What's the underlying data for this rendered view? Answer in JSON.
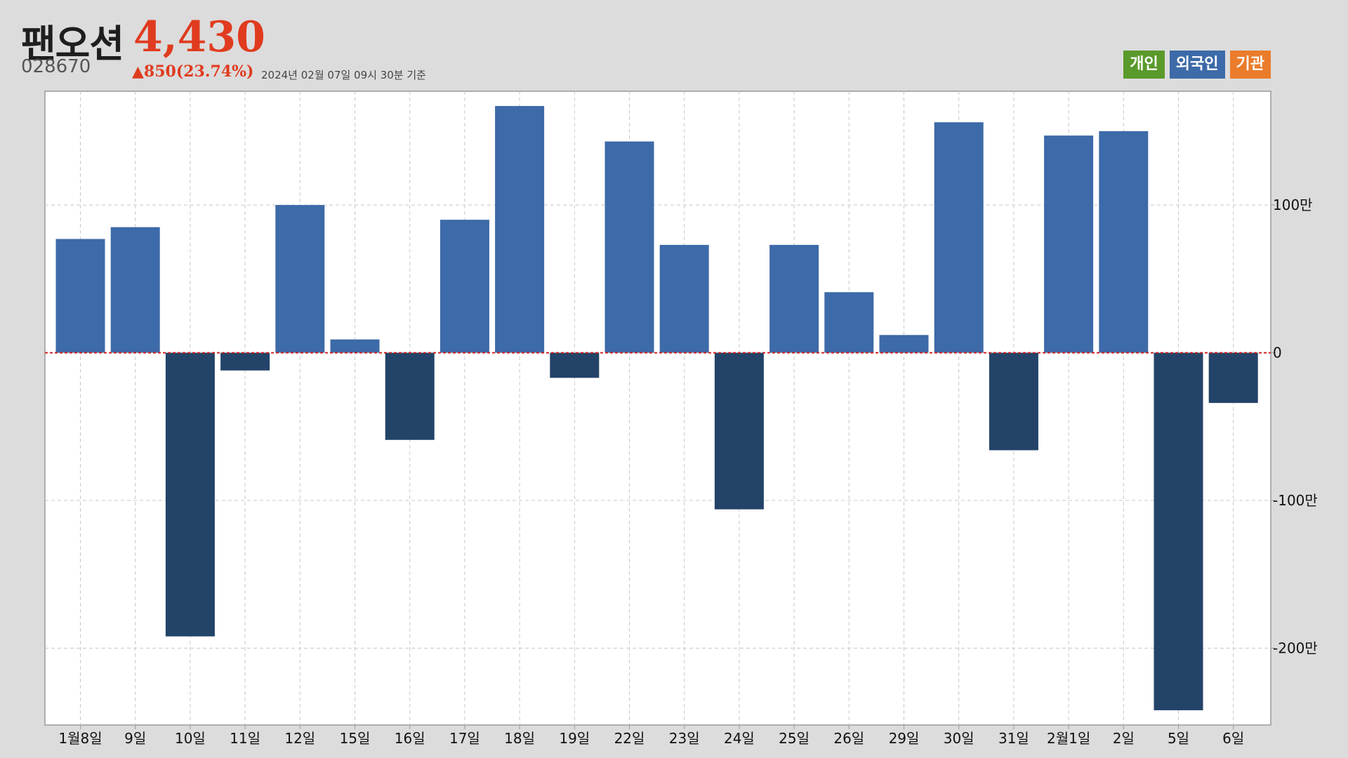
{
  "header": {
    "name": "팬오션",
    "price": "4,430",
    "code": "028670",
    "change": "▲850(23.74%)",
    "as_of": "2024년 02월 07일 09시 30분 기준"
  },
  "legend": {
    "personal": "개인",
    "foreign": "외국인",
    "institution": "기관"
  },
  "colors": {
    "positive": "#3d6aa8",
    "negative": "#234368",
    "zero_line": "#cc2222",
    "personal": "#5a9a2a",
    "foreign": "#3d6aa8",
    "institution": "#ea7c2b",
    "price": "#e03b1f"
  },
  "chart_data": {
    "type": "bar",
    "title": "",
    "xlabel": "",
    "ylabel": "",
    "categories": [
      "1월8일",
      "9일",
      "10일",
      "11일",
      "12일",
      "15일",
      "16일",
      "17일",
      "18일",
      "19일",
      "22일",
      "23일",
      "24일",
      "25일",
      "26일",
      "29일",
      "30일",
      "31일",
      "2월1일",
      "2일",
      "5일",
      "6일"
    ],
    "series": [
      {
        "name": "외국인",
        "values": [
          770000,
          850000,
          -1920000,
          -120000,
          1000000,
          90000,
          -590000,
          900000,
          1670000,
          -170000,
          1430000,
          730000,
          -1060000,
          730000,
          410000,
          120000,
          1560000,
          -660000,
          1470000,
          1500000,
          -2420000,
          -340000
        ]
      }
    ],
    "ylim": [
      -2520000,
      1770000
    ],
    "yticks": [
      {
        "value": 1000000,
        "label": "100만"
      },
      {
        "value": 0,
        "label": "0"
      },
      {
        "value": -1000000,
        "label": "-100만"
      },
      {
        "value": -2000000,
        "label": "-200만"
      }
    ],
    "grid": true,
    "legend_position": "top-right"
  }
}
